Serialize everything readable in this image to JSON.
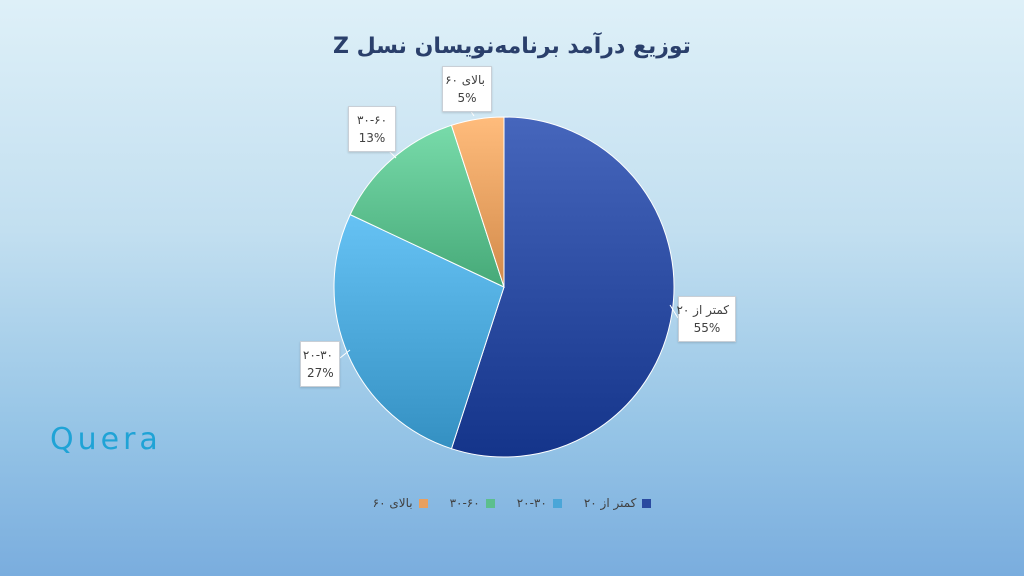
{
  "brand": {
    "logo_text": "Quera",
    "logo_color": "#1fa3d6"
  },
  "chart_data": {
    "type": "pie",
    "title": "توزیع درآمد برنامه‌نویسان نسل Z",
    "categories": [
      "کمتر از ۲۰",
      "۲۰-۳۰",
      "۳۰-۶۰",
      "بالای ۶۰"
    ],
    "values": [
      55,
      27,
      13,
      5
    ],
    "value_labels": [
      "55%",
      "27%",
      "13%",
      "5%"
    ],
    "colors": [
      "#2a4aa0",
      "#4aa6d8",
      "#5cbf8e",
      "#e8a060"
    ],
    "start": "12 o'clock",
    "direction": "clockwise",
    "legend_position": "bottom"
  }
}
